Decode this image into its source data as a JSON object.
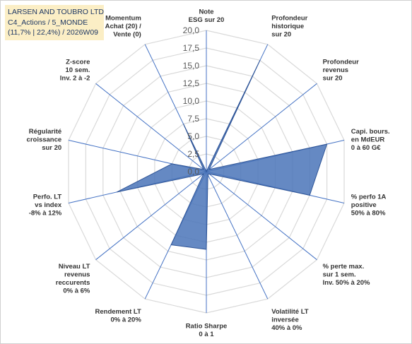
{
  "title_box": {
    "line1": "LARSEN AND TOUBRO LTD",
    "line2": "C4_Actions / 5_MONDE",
    "line3": "(11,7% | 22,4%) / 2026W09"
  },
  "colors": {
    "fill": "#4a74b8",
    "stroke": "#2f5597",
    "axis": "#4472c4",
    "grid": "#d9d9d9",
    "title_bg": "#fbeec5",
    "title_text": "#1f3864"
  },
  "chart_data": {
    "type": "radar",
    "title": "",
    "rmax": 20,
    "tick_step": 2.5,
    "ticks": [
      "0,0",
      "2,5",
      "5,0",
      "7,5",
      "10,0",
      "12,5",
      "15,0",
      "17,5",
      "20,0"
    ],
    "axes": [
      {
        "label": [
          "Note",
          "ESG sur 20"
        ],
        "value": 0
      },
      {
        "label": [
          "Profondeur",
          "historique",
          "sur 20"
        ],
        "value": 17.5
      },
      {
        "label": [
          "Profondeur",
          "revenus",
          "sur 20"
        ],
        "value": 0.5
      },
      {
        "label": [
          "Capi. bours.",
          "en MdEUR",
          "0 à 60 G€"
        ],
        "value": 17.5
      },
      {
        "label": [
          "% perfo 1A",
          "positive",
          "50% à 80%"
        ],
        "value": 15
      },
      {
        "label": [
          "% perte max.",
          "sur 1 sem.",
          "Inv. 50% à 20%"
        ],
        "value": 0.5
      },
      {
        "label": [
          "Volatilité LT",
          "inversée",
          "40% à 0%"
        ],
        "value": 0.5
      },
      {
        "label": [
          "Ratio Sharpe",
          "0 à 1"
        ],
        "value": 11
      },
      {
        "label": [
          "Rendement LT",
          "0% à 20%"
        ],
        "value": 11.5
      },
      {
        "label": [
          "Niveau LT",
          "revenus",
          "reccurents",
          "0% à 6%"
        ],
        "value": 0.5
      },
      {
        "label": [
          "Perfo. LT",
          "vs index",
          "-8% à 12%"
        ],
        "value": 13
      },
      {
        "label": [
          "Régularité",
          "croissance",
          "sur 20"
        ],
        "value": 5
      },
      {
        "label": [
          "Z-score",
          "10 sem.",
          "Inv. 2 à -2"
        ],
        "value": 0.5
      },
      {
        "label": [
          "Momentum",
          "Achat (20) /",
          "Vente (0)"
        ],
        "value": 7.5
      }
    ]
  }
}
